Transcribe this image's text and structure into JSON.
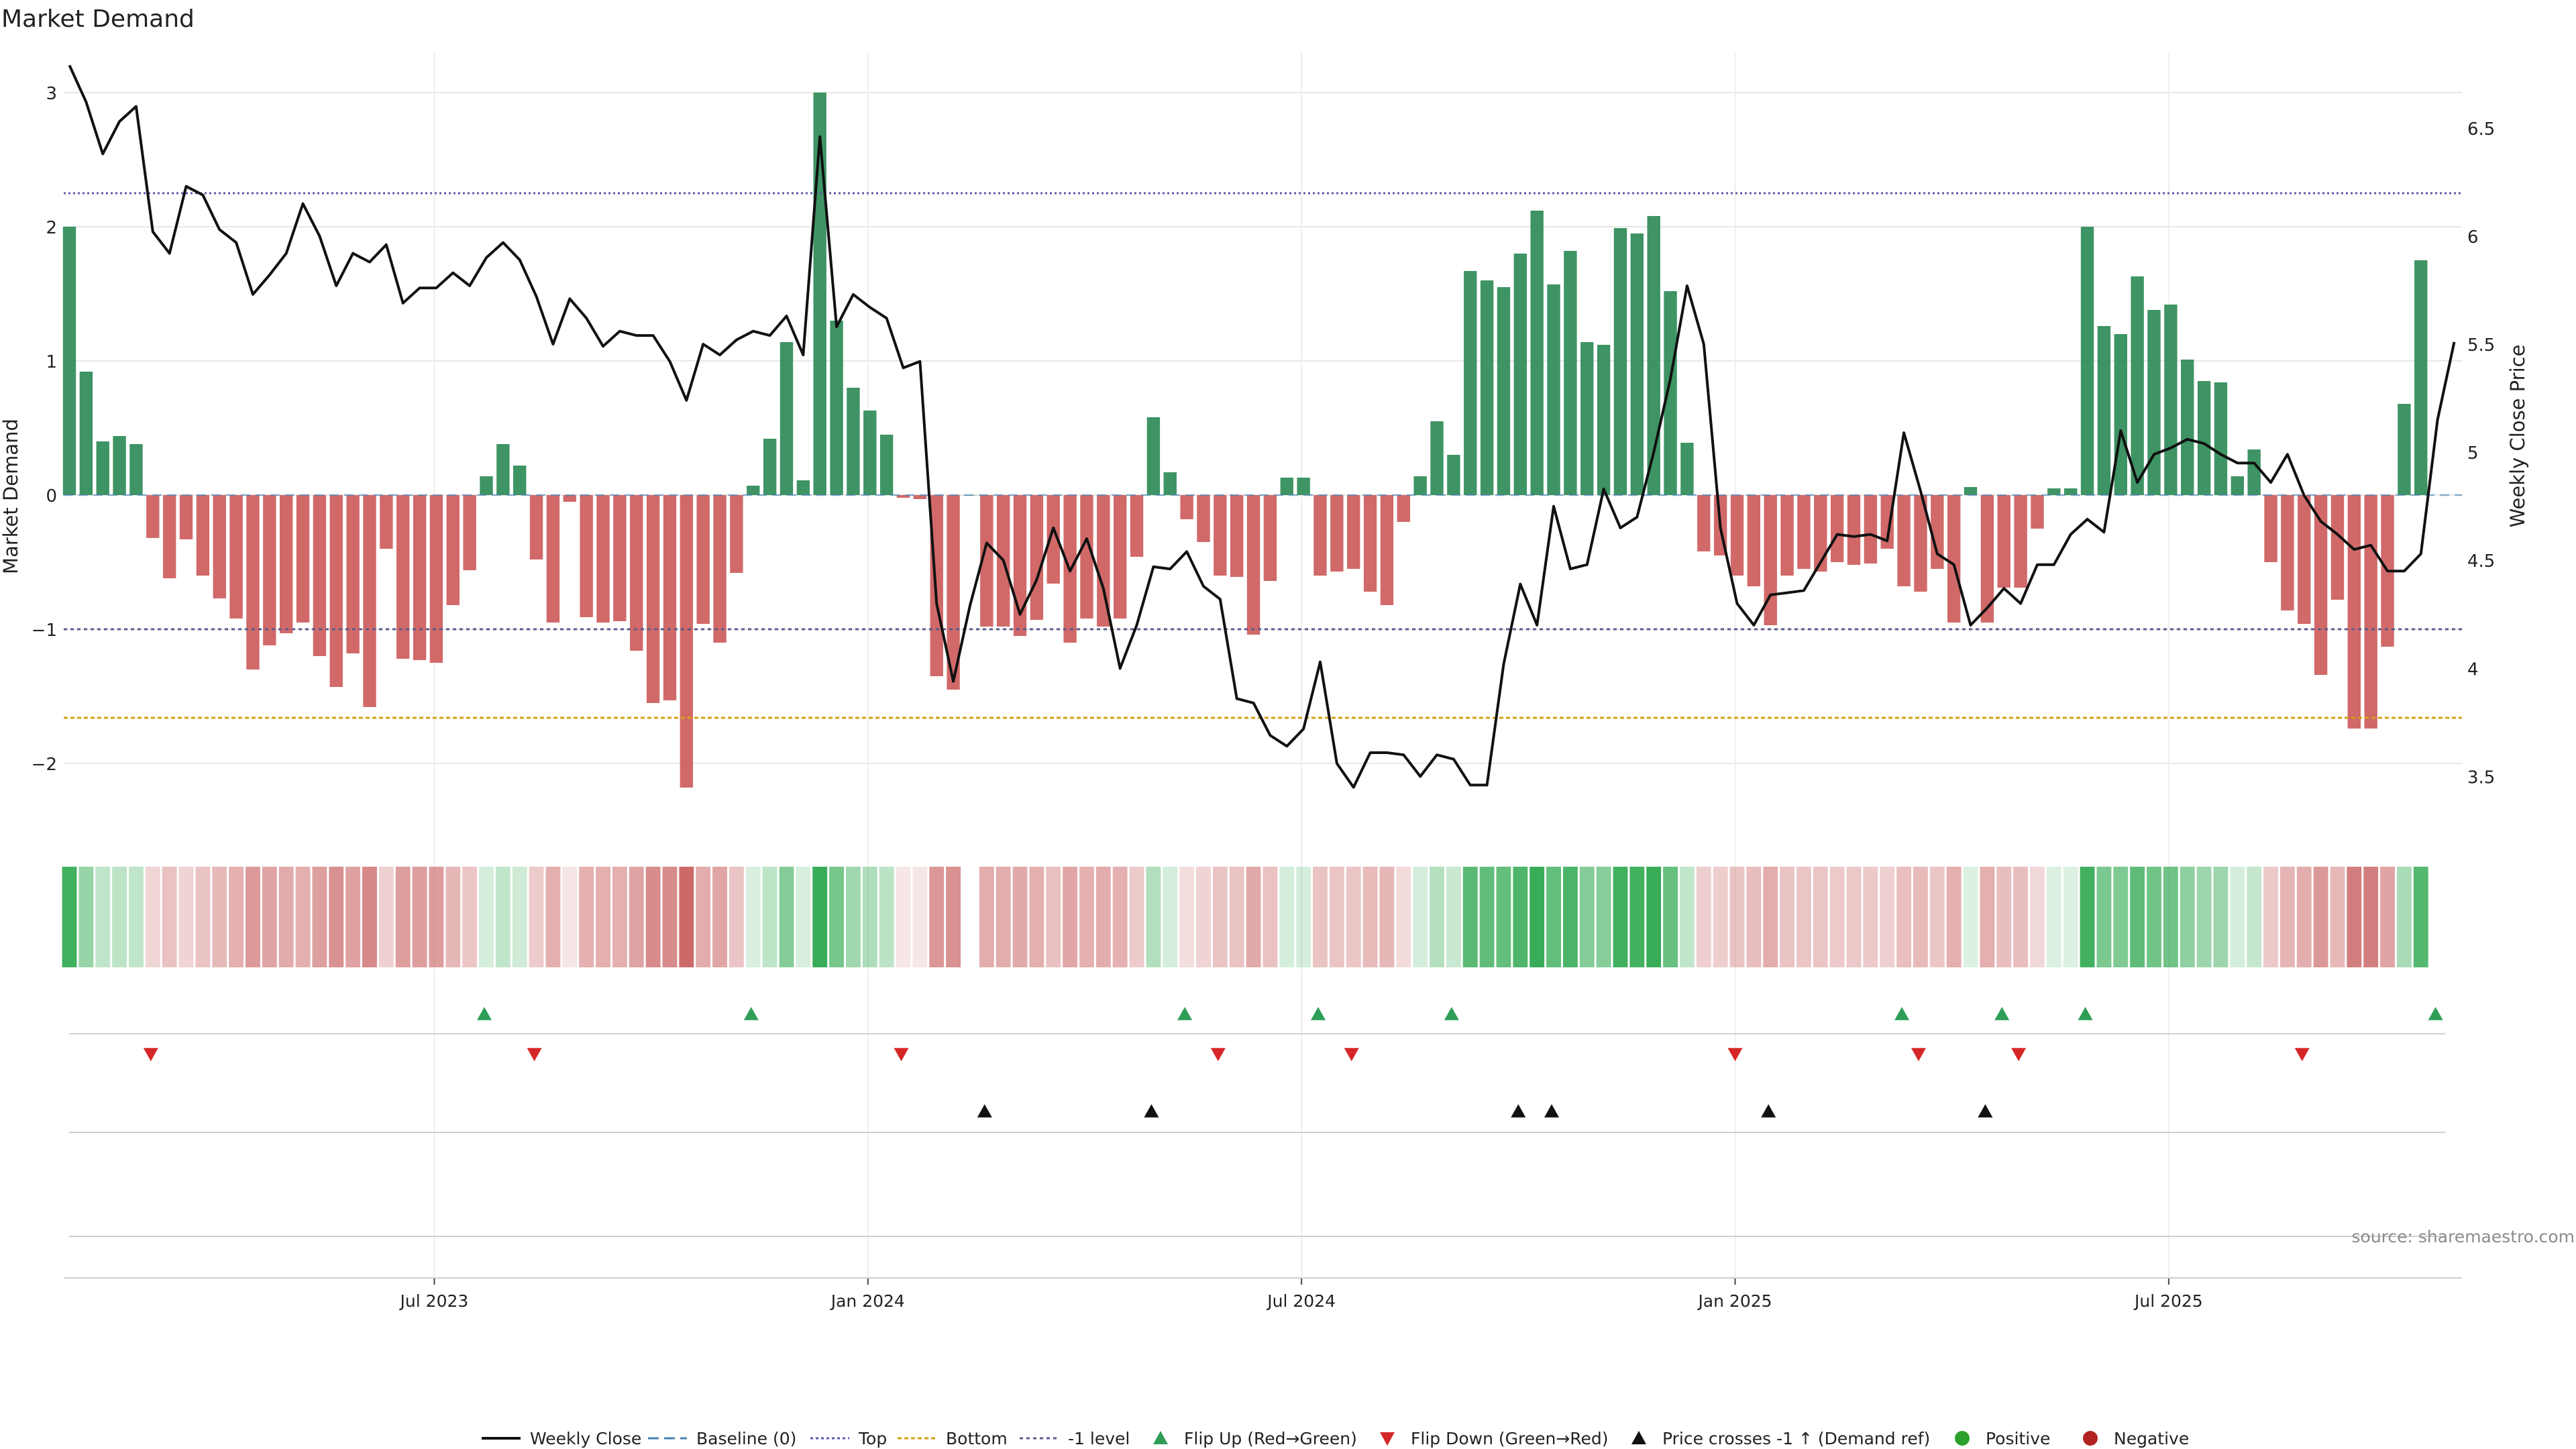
{
  "chart_data": {
    "type": "bar+line",
    "title": "Market Demand",
    "ylabel": "Market Demand",
    "y2label": "Weekly Close Price",
    "ylim": [
      -2.5,
      3.3
    ],
    "y2lim": [
      3.25,
      6.85
    ],
    "yticks": [
      "3",
      "2",
      "1",
      "0",
      "−1",
      "−2"
    ],
    "y2ticks": [
      "6.5",
      "6",
      "5.5",
      "5",
      "4.5",
      "4",
      "3.5"
    ],
    "levels": {
      "top": 2.25,
      "bottom": -1.66,
      "minus_one": -1.0,
      "baseline": 0.0
    },
    "x_ticks": [
      {
        "label": "Jul 2023",
        "week": 22
      },
      {
        "label": "Jan 2024",
        "week": 48
      },
      {
        "label": "Jul 2024",
        "week": 74
      },
      {
        "label": "Jan 2025",
        "week": 100
      },
      {
        "label": "Jul 2025",
        "week": 126
      }
    ],
    "demand": [
      2.0,
      0.92,
      0.4,
      0.44,
      0.38,
      -0.32,
      -0.62,
      -0.33,
      -0.6,
      -0.77,
      -0.92,
      -1.3,
      -1.12,
      -1.03,
      -0.95,
      -1.2,
      -1.43,
      -1.18,
      -1.58,
      -0.4,
      -1.22,
      -1.23,
      -1.25,
      -0.82,
      -0.56,
      0.14,
      0.38,
      0.22,
      -0.48,
      -0.95,
      -0.05,
      -0.91,
      -0.95,
      -0.94,
      -1.16,
      -1.55,
      -1.53,
      -2.18,
      -0.96,
      -1.1,
      -0.58,
      0.07,
      0.42,
      1.14,
      0.11,
      3.0,
      1.3,
      0.8,
      0.63,
      0.45,
      -0.02,
      -0.03,
      -1.35,
      -1.45,
      0.0,
      -0.98,
      -0.98,
      -1.05,
      -0.93,
      -0.66,
      -1.1,
      -0.92,
      -0.98,
      -0.92,
      -0.46,
      0.58,
      0.17,
      -0.18,
      -0.35,
      -0.6,
      -0.61,
      -1.04,
      -0.64,
      0.13,
      0.13,
      -0.6,
      -0.57,
      -0.55,
      -0.72,
      -0.82,
      -0.2,
      0.14,
      0.55,
      0.3,
      1.67,
      1.6,
      1.55,
      1.8,
      2.12,
      1.57,
      1.82,
      1.14,
      1.12,
      1.99,
      1.95,
      2.08,
      1.52,
      0.39,
      -0.42,
      -0.45,
      -0.6,
      -0.68,
      -0.97,
      -0.6,
      -0.55,
      -0.57,
      -0.5,
      -0.52,
      -0.51,
      -0.4,
      -0.68,
      -0.72,
      -0.55,
      -0.95,
      0.06,
      -0.95,
      -0.69,
      -0.69,
      -0.25,
      0.05,
      0.05,
      2.0,
      1.26,
      1.2,
      1.63,
      1.38,
      1.42,
      1.01,
      0.85,
      0.84,
      0.14,
      0.34,
      -0.5,
      -0.86,
      -0.96,
      -1.34,
      -0.78,
      -1.74,
      -1.74,
      -1.13,
      0.68,
      1.75
    ],
    "price": [
      6.79,
      6.62,
      6.38,
      6.53,
      6.6,
      6.02,
      5.92,
      6.23,
      6.19,
      6.03,
      5.97,
      5.73,
      5.82,
      5.92,
      6.15,
      6.0,
      5.77,
      5.92,
      5.88,
      5.96,
      5.69,
      5.76,
      5.76,
      5.83,
      5.77,
      5.9,
      5.97,
      5.89,
      5.72,
      5.5,
      5.71,
      5.62,
      5.49,
      5.56,
      5.54,
      5.54,
      5.42,
      5.24,
      5.5,
      5.45,
      5.52,
      5.56,
      5.54,
      5.63,
      5.45,
      6.46,
      5.58,
      5.73,
      5.67,
      5.62,
      5.39,
      5.42,
      4.3,
      3.94,
      4.29,
      4.58,
      4.5,
      4.25,
      4.41,
      4.65,
      4.45,
      4.6,
      4.37,
      4.0,
      4.2,
      4.47,
      4.46,
      4.54,
      4.38,
      4.32,
      3.86,
      3.84,
      3.69,
      3.64,
      3.72,
      4.03,
      3.56,
      3.45,
      3.61,
      3.61,
      3.6,
      3.5,
      3.6,
      3.58,
      3.46,
      3.46,
      4.02,
      4.39,
      4.2,
      4.75,
      4.46,
      4.48,
      4.83,
      4.65,
      4.7,
      5.0,
      5.34,
      5.77,
      5.5,
      4.65,
      4.3,
      4.2,
      4.34,
      4.35,
      4.36,
      4.49,
      4.62,
      4.61,
      4.62,
      4.59,
      5.09,
      4.82,
      4.53,
      4.48,
      4.2,
      4.28,
      4.37,
      4.3,
      4.48,
      4.48,
      4.62,
      4.69,
      4.63,
      5.1,
      4.86,
      4.99,
      5.02,
      5.06,
      5.04,
      4.99,
      4.95,
      4.95,
      4.86,
      4.99,
      4.8,
      4.68,
      4.62,
      4.55,
      4.57,
      4.45,
      4.45,
      4.53,
      5.15,
      5.51
    ]
  },
  "flags": {
    "flip_up_weeks": [
      25,
      41,
      67,
      75,
      83,
      110,
      116,
      121,
      142
    ],
    "flip_down_weeks": [
      5,
      28,
      50,
      69,
      77,
      100,
      111,
      117,
      134
    ],
    "price_cross_weeks": [
      55,
      65,
      87,
      89,
      102,
      115
    ]
  },
  "colors": {
    "positive": "#2e8b57",
    "negative": "#cd5c5c",
    "price_line": "#111111",
    "top": "#5a5aa8",
    "bottom": "#d4a017",
    "minus_one": "#5b5b8c",
    "baseline": "#4682b4",
    "flip_up": "#2e9e57",
    "flip_down": "#d62728",
    "cross": "#111111",
    "positive_dot": "#2ca02c",
    "negative_dot": "#b22222"
  },
  "legend": [
    {
      "label": "Weekly Close",
      "kind": "line"
    },
    {
      "label": "Baseline (0)",
      "kind": "baseline"
    },
    {
      "label": "Top",
      "kind": "top"
    },
    {
      "label": "Bottom",
      "kind": "bottom"
    },
    {
      "label": "-1 level",
      "kind": "minus_one"
    },
    {
      "label": "Flip Up (Red→Green)",
      "kind": "flip_up"
    },
    {
      "label": "Flip Down (Green→Red)",
      "kind": "flip_down"
    },
    {
      "label": "Price crosses -1 ↑ (Demand ref)",
      "kind": "cross"
    },
    {
      "label": "Positive",
      "kind": "positive_dot"
    },
    {
      "label": "Negative",
      "kind": "negative_dot"
    }
  ],
  "source": "source: sharemaestro.com"
}
